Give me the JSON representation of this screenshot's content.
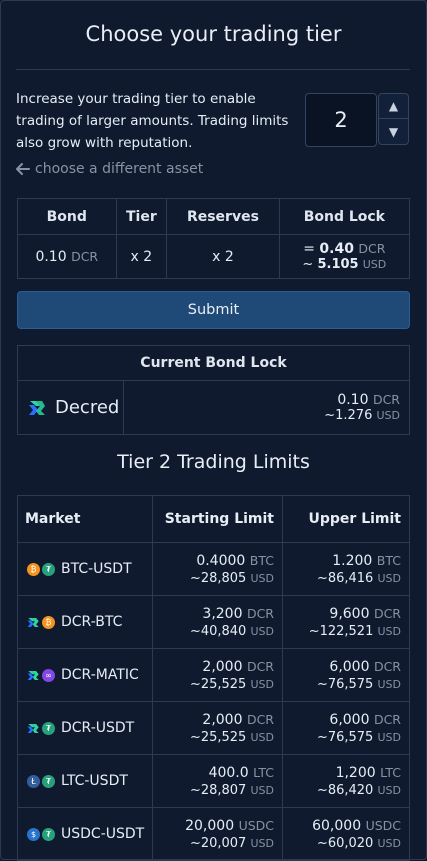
{
  "header": {
    "title": "Choose your trading tier"
  },
  "intro": {
    "text": "Increase your trading tier to enable trading of larger amounts. Trading limits also grow with reputation."
  },
  "tier_input": {
    "value": "2"
  },
  "back_link": {
    "label": "choose a different asset"
  },
  "bond_table": {
    "headers": [
      "Bond",
      "Tier",
      "Reserves",
      "Bond Lock"
    ],
    "bond_value": "0.10",
    "bond_unit": "DCR",
    "tier_value": "x 2",
    "reserves_value": "x 2",
    "lock_prefix": "=",
    "lock_value": "0.40",
    "lock_unit": "DCR",
    "lock_usd_prefix": "~",
    "lock_usd_value": "5.105",
    "lock_usd_unit": "USD"
  },
  "submit": {
    "label": "Submit"
  },
  "current_lock": {
    "header": "Current Bond Lock",
    "asset": "Decred",
    "value": "0.10",
    "unit": "DCR",
    "usd": "~1.276",
    "usd_unit": "USD"
  },
  "limits": {
    "title": "Tier 2 Trading Limits",
    "headers": [
      "Market",
      "Starting Limit",
      "Upper Limit"
    ],
    "rows": [
      {
        "market": "BTC-USDT",
        "icons": [
          "btc",
          "usdt"
        ],
        "start": "0.4000",
        "start_unit": "BTC",
        "start_usd": "~28,805",
        "upper": "1.200",
        "upper_unit": "BTC",
        "upper_usd": "~86,416"
      },
      {
        "market": "DCR-BTC",
        "icons": [
          "dcr",
          "btc"
        ],
        "start": "3,200",
        "start_unit": "DCR",
        "start_usd": "~40,840",
        "upper": "9,600",
        "upper_unit": "DCR",
        "upper_usd": "~122,521"
      },
      {
        "market": "DCR-MATIC",
        "icons": [
          "dcr",
          "matic"
        ],
        "start": "2,000",
        "start_unit": "DCR",
        "start_usd": "~25,525",
        "upper": "6,000",
        "upper_unit": "DCR",
        "upper_usd": "~76,575"
      },
      {
        "market": "DCR-USDT",
        "icons": [
          "dcr",
          "usdt"
        ],
        "start": "2,000",
        "start_unit": "DCR",
        "start_usd": "~25,525",
        "upper": "6,000",
        "upper_unit": "DCR",
        "upper_usd": "~76,575"
      },
      {
        "market": "LTC-USDT",
        "icons": [
          "ltc",
          "usdt"
        ],
        "start": "400.0",
        "start_unit": "LTC",
        "start_usd": "~28,807",
        "upper": "1,200",
        "upper_unit": "LTC",
        "upper_usd": "~86,420"
      },
      {
        "market": "USDC-USDT",
        "icons": [
          "usdc",
          "usdt"
        ],
        "start": "20,000",
        "start_unit": "USDC",
        "start_usd": "~20,007",
        "upper": "60,000",
        "upper_unit": "USDC",
        "upper_usd": "~60,020"
      }
    ],
    "usd_unit": "USD"
  },
  "colors": {
    "btc": "#f7931a",
    "usdt": "#26a17b",
    "dcr": "#2ed6a1",
    "matic": "#8247e5",
    "ltc": "#345d9d",
    "usdc": "#2775ca",
    "accent": "#1f4a78"
  }
}
